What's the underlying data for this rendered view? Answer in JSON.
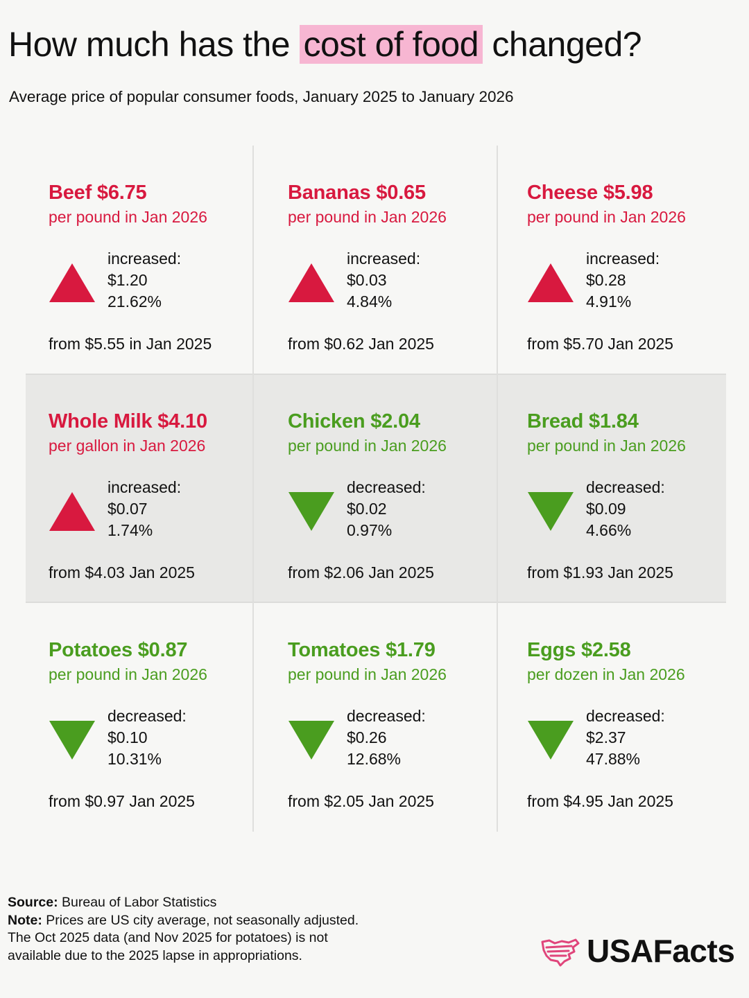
{
  "title": {
    "before": "How much has the",
    "highlight": "cost of food",
    "after": "changed?"
  },
  "subtitle": "Average price of popular consumer foods, January 2025 to January 2026",
  "colors": {
    "increase": "#d8193f",
    "decrease": "#4a9d1f",
    "highlight": "#f7b6d2",
    "logo_mark": "#e0457b"
  },
  "chart_data": {
    "type": "table",
    "title": "How much has the cost of food changed?",
    "subtitle": "Average price of popular consumer foods, January 2025 to January 2026",
    "items": [
      {
        "heading": "Beef $6.75",
        "unit": "per pound in Jan 2026",
        "direction": "up",
        "change_label": "increased:",
        "change": "$1.20",
        "percent": "21.62%",
        "from": "from $5.55 in Jan 2025",
        "price_2026": 6.75,
        "price_2025": 5.55
      },
      {
        "heading": "Bananas $0.65",
        "unit": "per pound in Jan 2026",
        "direction": "up",
        "change_label": "increased:",
        "change": "$0.03",
        "percent": "4.84%",
        "from": "from $0.62 Jan 2025",
        "price_2026": 0.65,
        "price_2025": 0.62
      },
      {
        "heading": "Cheese $5.98",
        "unit": "per pound in Jan 2026",
        "direction": "up",
        "change_label": "increased:",
        "change": "$0.28",
        "percent": "4.91%",
        "from": "from $5.70 Jan 2025",
        "price_2026": 5.98,
        "price_2025": 5.7
      },
      {
        "heading": "Whole Milk $4.10",
        "unit": "per gallon in Jan 2026",
        "direction": "up",
        "change_label": "increased:",
        "change": "$0.07",
        "percent": "1.74%",
        "from": "from $4.03 Jan 2025",
        "price_2026": 4.1,
        "price_2025": 4.03
      },
      {
        "heading": "Chicken $2.04",
        "unit": "per pound in Jan 2026",
        "direction": "down",
        "change_label": "decreased:",
        "change": "$0.02",
        "percent": "0.97%",
        "from": "from $2.06 Jan 2025",
        "price_2026": 2.04,
        "price_2025": 2.06
      },
      {
        "heading": "Bread $1.84",
        "unit": "per pound in Jan 2026",
        "direction": "down",
        "change_label": "decreased:",
        "change": "$0.09",
        "percent": "4.66%",
        "from": "from $1.93 Jan 2025",
        "price_2026": 1.84,
        "price_2025": 1.93
      },
      {
        "heading": "Potatoes $0.87",
        "unit": "per pound in Jan 2026",
        "direction": "down",
        "change_label": "decreased:",
        "change": "$0.10",
        "percent": "10.31%",
        "from": "from $0.97 Jan 2025",
        "price_2026": 0.87,
        "price_2025": 0.97
      },
      {
        "heading": "Tomatoes $1.79",
        "unit": "per pound in Jan 2026",
        "direction": "down",
        "change_label": "decreased:",
        "change": "$0.26",
        "percent": "12.68%",
        "from": "from $2.05 Jan 2025",
        "price_2026": 1.79,
        "price_2025": 2.05
      },
      {
        "heading": "Eggs $2.58",
        "unit": "per dozen in Jan 2026",
        "direction": "down",
        "change_label": "decreased:",
        "change": "$2.37",
        "percent": "47.88%",
        "from": "from $4.95 Jan 2025",
        "price_2026": 2.58,
        "price_2025": 4.95
      }
    ]
  },
  "footer": {
    "source_label": "Source:",
    "source_text": " Bureau of Labor Statistics",
    "note_label": "Note:",
    "note_line1": " Prices are US city average, not seasonally adjusted.",
    "note_line2": "The Oct 2025 data (and Nov 2025 for potatoes) is not",
    "note_line3": "available due to the 2025 lapse in appropriations."
  },
  "logo": {
    "text": "USAFacts",
    "icon": "usa-flag-map-icon"
  }
}
